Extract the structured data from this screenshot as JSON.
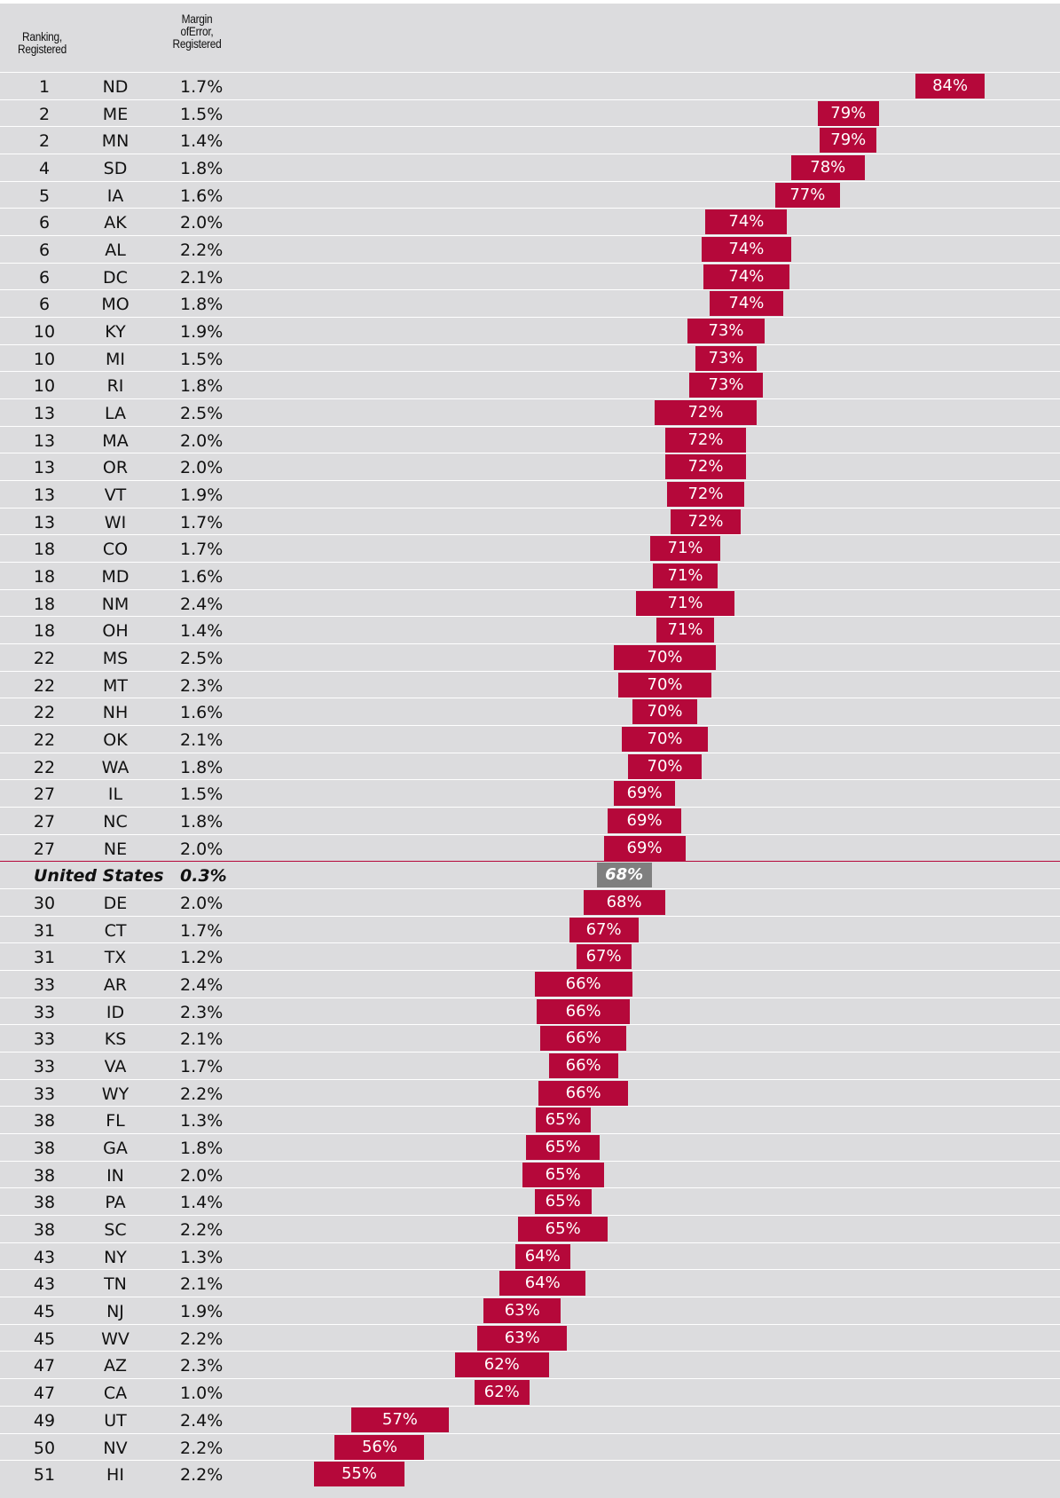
{
  "chart_data": {
    "type": "range_bar",
    "rank_header": "Ranking, Registered",
    "margin_header": "Margin ofError, Registered",
    "ranks": [
      1,
      2,
      2,
      4,
      5,
      6,
      6,
      6,
      6,
      10,
      10,
      10,
      13,
      13,
      13,
      13,
      13,
      18,
      18,
      18,
      18,
      22,
      22,
      22,
      22,
      22,
      27,
      27,
      27,
      null,
      30,
      31,
      31,
      33,
      33,
      33,
      33,
      33,
      38,
      38,
      38,
      38,
      38,
      43,
      43,
      45,
      45,
      47,
      47,
      49,
      50,
      51
    ],
    "categories": [
      "ND",
      "ME",
      "MN",
      "SD",
      "IA",
      "AK",
      "AL",
      "DC",
      "MO",
      "KY",
      "MI",
      "RI",
      "LA",
      "MA",
      "OR",
      "VT",
      "WI",
      "CO",
      "MD",
      "NM",
      "OH",
      "MS",
      "MT",
      "NH",
      "OK",
      "WA",
      "IL",
      "NC",
      "NE",
      "United States",
      "DE",
      "CT",
      "TX",
      "AR",
      "ID",
      "KS",
      "VA",
      "WY",
      "FL",
      "GA",
      "IN",
      "PA",
      "SC",
      "NY",
      "TN",
      "NJ",
      "WV",
      "AZ",
      "CA",
      "UT",
      "NV",
      "HI"
    ],
    "margins": [
      1.7,
      1.5,
      1.4,
      1.8,
      1.6,
      2.0,
      2.2,
      2.1,
      1.8,
      1.9,
      1.5,
      1.8,
      2.5,
      2.0,
      2.0,
      1.9,
      1.7,
      1.7,
      1.6,
      2.4,
      1.4,
      2.5,
      2.3,
      1.6,
      2.1,
      1.8,
      1.5,
      1.8,
      2.0,
      0.3,
      2.0,
      1.7,
      1.2,
      2.4,
      2.3,
      2.1,
      1.7,
      2.2,
      1.3,
      1.8,
      2.0,
      1.4,
      2.2,
      1.3,
      2.1,
      1.9,
      2.2,
      2.3,
      1.0,
      2.4,
      2.2,
      2.2
    ],
    "margin_labels": [
      "1.7%",
      "1.5%",
      "1.4%",
      "1.8%",
      "1.6%",
      "2.0%",
      "2.2%",
      "2.1%",
      "1.8%",
      "1.9%",
      "1.5%",
      "1.8%",
      "2.5%",
      "2.0%",
      "2.0%",
      "1.9%",
      "1.7%",
      "1.7%",
      "1.6%",
      "2.4%",
      "1.4%",
      "2.5%",
      "2.3%",
      "1.6%",
      "2.1%",
      "1.8%",
      "1.5%",
      "1.8%",
      "2.0%",
      "0.3%",
      "2.0%",
      "1.7%",
      "1.2%",
      "2.4%",
      "2.3%",
      "2.1%",
      "1.7%",
      "2.2%",
      "1.3%",
      "1.8%",
      "2.0%",
      "1.4%",
      "2.2%",
      "1.3%",
      "2.1%",
      "1.9%",
      "2.2%",
      "2.3%",
      "1.0%",
      "2.4%",
      "2.2%",
      "2.2%"
    ],
    "values": [
      84,
      79,
      79,
      78,
      77,
      74,
      74,
      74,
      74,
      73,
      73,
      73,
      72,
      72,
      72,
      72,
      72,
      71,
      71,
      71,
      71,
      70,
      70,
      70,
      70,
      70,
      69,
      69,
      69,
      68,
      68,
      67,
      67,
      66,
      66,
      66,
      66,
      66,
      65,
      65,
      65,
      65,
      65,
      64,
      64,
      63,
      63,
      62,
      62,
      57,
      56,
      55
    ],
    "value_labels": [
      "84%",
      "79%",
      "79%",
      "78%",
      "77%",
      "74%",
      "74%",
      "74%",
      "74%",
      "73%",
      "73%",
      "73%",
      "72%",
      "72%",
      "72%",
      "72%",
      "72%",
      "71%",
      "71%",
      "71%",
      "71%",
      "70%",
      "70%",
      "70%",
      "70%",
      "70%",
      "69%",
      "69%",
      "69%",
      "68%",
      "68%",
      "67%",
      "67%",
      "66%",
      "66%",
      "66%",
      "66%",
      "66%",
      "65%",
      "65%",
      "65%",
      "65%",
      "65%",
      "64%",
      "64%",
      "63%",
      "63%",
      "62%",
      "62%",
      "57%",
      "56%",
      "55%"
    ],
    "color": "#b5083a",
    "highlight": "United States",
    "highlight_color": "#7f7f7f"
  }
}
